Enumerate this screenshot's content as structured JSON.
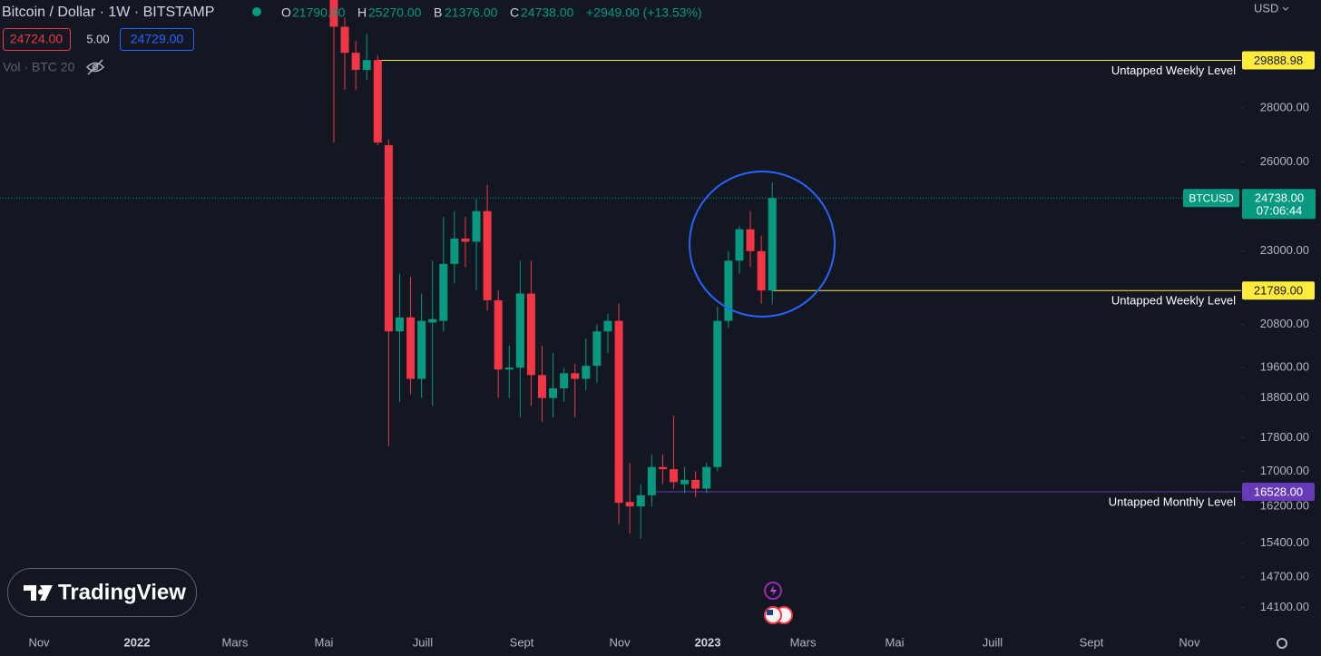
{
  "header": {
    "symbol": "Bitcoin / Dollar · 1W · BITSTAMP",
    "o_key": "O",
    "o": "21790.00",
    "h_key": "H",
    "h": "25270.00",
    "b_key": "B",
    "b": "21376.00",
    "c_key": "C",
    "c": "24738.00",
    "change": "+2949.00 (+13.53%)",
    "bid": "24724.00",
    "spread": "5.00",
    "ask": "24729.00",
    "volume": "Vol · BTC 20",
    "currency": "USD",
    "logo": "TradingView"
  },
  "chart_data": {
    "type": "candlestick",
    "log_scale": true,
    "up_color": "#089981",
    "down_color": "#f23645",
    "x": [
      0,
      1,
      2,
      3,
      4,
      5,
      6,
      7,
      8,
      9,
      10,
      11,
      12,
      13,
      14,
      15,
      16,
      17,
      18,
      19,
      20,
      21,
      22,
      23,
      24,
      25,
      26,
      27,
      28,
      29,
      30,
      31,
      32,
      33,
      34,
      35,
      36,
      37,
      38,
      39,
      40
    ],
    "open": [
      34000,
      31300,
      30200,
      29500,
      29900,
      26600,
      20600,
      21000,
      19300,
      20850,
      20900,
      22600,
      23400,
      23300,
      24300,
      21500,
      19550,
      19600,
      21700,
      19400,
      18800,
      19050,
      19450,
      19300,
      19650,
      20600,
      20900,
      16300,
      16200,
      16450,
      17100,
      17050,
      16700,
      16800,
      16600,
      17100,
      20900,
      22700,
      23700,
      23000,
      21790
    ],
    "high": [
      34200,
      31700,
      30700,
      31000,
      30100,
      26800,
      22300,
      22200,
      21700,
      22700,
      24100,
      24300,
      24100,
      24700,
      25200,
      21800,
      20200,
      22700,
      22700,
      20200,
      20000,
      19600,
      19700,
      20400,
      20800,
      21100,
      21400,
      17200,
      16700,
      17400,
      17400,
      18350,
      17100,
      17000,
      17200,
      21300,
      23000,
      23800,
      24300,
      23500,
      25270
    ],
    "low": [
      26700,
      28700,
      28700,
      29100,
      26600,
      17600,
      18700,
      18900,
      18800,
      18600,
      20600,
      22000,
      22500,
      21800,
      21200,
      18800,
      18800,
      18300,
      18600,
      18200,
      18300,
      18700,
      18300,
      19000,
      19200,
      20000,
      15800,
      15600,
      15500,
      16200,
      16700,
      16600,
      16500,
      16400,
      16500,
      17000,
      20700,
      22300,
      22500,
      21400,
      21376
    ],
    "close": [
      31300,
      30200,
      29500,
      29900,
      26700,
      20600,
      21000,
      19300,
      20900,
      20950,
      22600,
      23400,
      23300,
      24300,
      21500,
      19550,
      19600,
      21700,
      19400,
      18800,
      19050,
      19450,
      19300,
      19650,
      20600,
      20900,
      16280,
      16200,
      16450,
      17100,
      17050,
      16750,
      16800,
      16600,
      17100,
      20900,
      22700,
      23700,
      23000,
      21790,
      24738
    ],
    "xlim": [
      -30.46,
      82.78
    ],
    "xticks": [
      {
        "value": -26.9,
        "label": "Nov"
      },
      {
        "value": -17.96,
        "label": "2022"
      },
      {
        "value": -9.02,
        "label": "Mars"
      },
      {
        "value": -0.91,
        "label": "Mai"
      },
      {
        "value": 8.11,
        "label": "Juill"
      },
      {
        "value": 17.14,
        "label": "Sept"
      },
      {
        "value": 26.08,
        "label": "Nov"
      },
      {
        "value": 34.11,
        "label": "2023"
      },
      {
        "value": 42.8,
        "label": "Mars"
      },
      {
        "value": 51.16,
        "label": "Mai"
      },
      {
        "value": 60.1,
        "label": "Juill"
      },
      {
        "value": 69.12,
        "label": "Sept"
      },
      {
        "value": 78.06,
        "label": "Nov"
      }
    ],
    "ylim": [
      13660,
      32470
    ],
    "yticks": [
      {
        "value": 28000,
        "label": "28000.00"
      },
      {
        "value": 26000,
        "label": "26000.00"
      },
      {
        "value": 23000,
        "label": "23000.00"
      },
      {
        "value": 20800,
        "label": "20800.00"
      },
      {
        "value": 19600,
        "label": "19600.00"
      },
      {
        "value": 18800,
        "label": "18800.00"
      },
      {
        "value": 17800,
        "label": "17800.00"
      },
      {
        "value": 17000,
        "label": "17000.00"
      },
      {
        "value": 16200,
        "label": "16200.00"
      },
      {
        "value": 15400,
        "label": "15400.00"
      },
      {
        "value": 14700,
        "label": "14700.00"
      },
      {
        "value": 14100,
        "label": "14100.00"
      }
    ],
    "levels": [
      {
        "value": 29888.98,
        "label": "29888.98",
        "name": "Untapped Weekly Level",
        "from": 4,
        "color": "#ffeb3b"
      },
      {
        "value": 21789,
        "label": "21789.00",
        "name": "Untapped Weekly Level",
        "from": 40,
        "color": "#ffeb3b"
      },
      {
        "value": 16528,
        "label": "16528.00",
        "name": "Untapped Monthly Level",
        "from": 29,
        "color": "#673ab7"
      }
    ],
    "last": {
      "value": 24738,
      "label": "24738.00",
      "symbol": "BTCUSD",
      "countdown": "07:06:44",
      "color": "#089981"
    }
  }
}
